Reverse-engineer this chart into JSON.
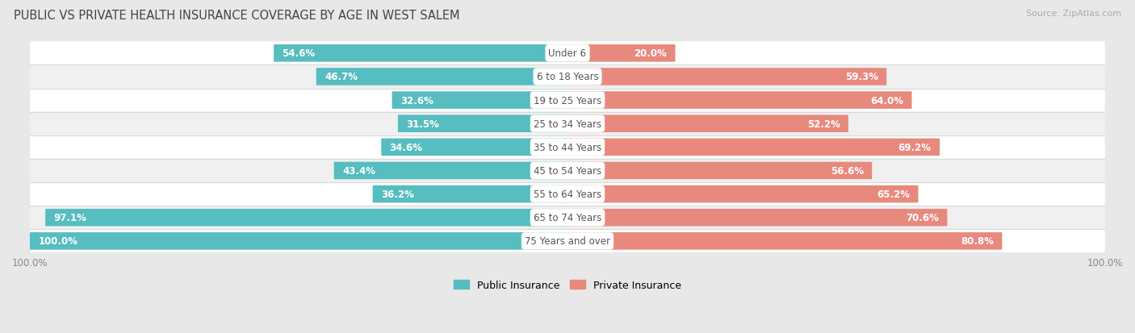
{
  "title": "PUBLIC VS PRIVATE HEALTH INSURANCE COVERAGE BY AGE IN WEST SALEM",
  "source": "Source: ZipAtlas.com",
  "categories": [
    "Under 6",
    "6 to 18 Years",
    "19 to 25 Years",
    "25 to 34 Years",
    "35 to 44 Years",
    "45 to 54 Years",
    "55 to 64 Years",
    "65 to 74 Years",
    "75 Years and over"
  ],
  "public_values": [
    54.6,
    46.7,
    32.6,
    31.5,
    34.6,
    43.4,
    36.2,
    97.1,
    100.0
  ],
  "private_values": [
    20.0,
    59.3,
    64.0,
    52.2,
    69.2,
    56.6,
    65.2,
    70.6,
    80.8
  ],
  "public_color": "#56bdc0",
  "private_color": "#e8897e",
  "bar_height": 0.62,
  "bg_color": "#e8e8e8",
  "row_bg_colors": [
    "#ffffff",
    "#f0f0f0"
  ],
  "separator_color": "#d8d8d8",
  "max_value": 100.0,
  "title_fontsize": 10.5,
  "label_fontsize": 8.5,
  "category_fontsize": 8.5,
  "legend_fontsize": 9,
  "source_fontsize": 8,
  "axis_label_color": "#888888",
  "dark_text_color": "#555555",
  "white_text_color": "#ffffff",
  "threshold_white_text": 15.0
}
